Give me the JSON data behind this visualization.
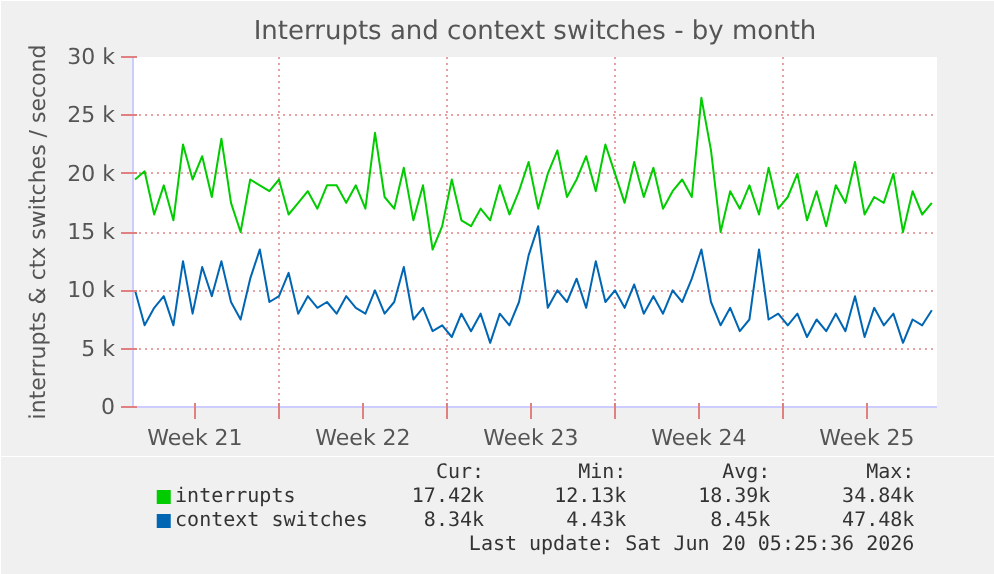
{
  "chart_data": {
    "type": "line",
    "title": "Interrupts and context switches - by month",
    "ylabel": "interrupts & ctx switches / second",
    "x": [
      "2026-05-19T00:00",
      "2026-05-19T09:36",
      "2026-05-19T19:12",
      "2026-05-20T04:48",
      "2026-05-20T14:24",
      "2026-05-21T00:00",
      "2026-05-21T09:36",
      "2026-05-21T19:12",
      "2026-05-22T04:48",
      "2026-05-22T14:24",
      "2026-05-23T00:00",
      "2026-05-23T09:36",
      "2026-05-23T19:12",
      "2026-05-24T04:48",
      "2026-05-24T14:24",
      "2026-05-25T00:00",
      "2026-05-25T09:36",
      "2026-05-25T19:12",
      "2026-05-26T04:48",
      "2026-05-26T14:24",
      "2026-05-27T00:00",
      "2026-05-27T09:36",
      "2026-05-27T19:12",
      "2026-05-28T04:48",
      "2026-05-28T14:24",
      "2026-05-29T00:00",
      "2026-05-29T09:36",
      "2026-05-29T19:12",
      "2026-05-30T04:48",
      "2026-05-30T14:24",
      "2026-05-31T00:00",
      "2026-05-31T09:36",
      "2026-05-31T19:12",
      "2026-06-01T04:48",
      "2026-06-01T14:24",
      "2026-06-02T00:00",
      "2026-06-02T09:36",
      "2026-06-02T19:12",
      "2026-06-03T04:48",
      "2026-06-03T14:24",
      "2026-06-04T00:00",
      "2026-06-04T09:36",
      "2026-06-04T19:12",
      "2026-06-05T04:48",
      "2026-06-05T14:24",
      "2026-06-06T00:00",
      "2026-06-06T09:36",
      "2026-06-06T19:12",
      "2026-06-07T04:48",
      "2026-06-07T14:24",
      "2026-06-08T00:00",
      "2026-06-08T09:36",
      "2026-06-08T19:12",
      "2026-06-09T04:48",
      "2026-06-09T14:24",
      "2026-06-10T00:00",
      "2026-06-10T09:36",
      "2026-06-10T19:12",
      "2026-06-11T04:48",
      "2026-06-11T14:24",
      "2026-06-12T00:00",
      "2026-06-12T09:36",
      "2026-06-12T19:12",
      "2026-06-13T04:48",
      "2026-06-13T14:24",
      "2026-06-14T00:00",
      "2026-06-14T09:36",
      "2026-06-14T19:12",
      "2026-06-15T04:48",
      "2026-06-15T14:24",
      "2026-06-16T00:00",
      "2026-06-16T09:36",
      "2026-06-16T19:12",
      "2026-06-17T04:48",
      "2026-06-17T14:24",
      "2026-06-18T00:00",
      "2026-06-18T09:36",
      "2026-06-18T19:12",
      "2026-06-19T04:48",
      "2026-06-19T14:24",
      "2026-06-20T00:00",
      "2026-06-20T09:36",
      "2026-06-20T19:12",
      "2026-06-21T04:48"
    ],
    "series": [
      {
        "name": "interrupts",
        "color": "#00cc00",
        "values": [
          19500,
          20200,
          16500,
          19000,
          16000,
          22500,
          19500,
          21500,
          18000,
          23000,
          17500,
          15000,
          19500,
          19000,
          18500,
          19500,
          16500,
          17500,
          18500,
          17000,
          19000,
          19000,
          17500,
          19000,
          17000,
          23500,
          18000,
          17000,
          20500,
          16000,
          19000,
          13500,
          15500,
          19500,
          16000,
          15500,
          17000,
          16000,
          19000,
          16500,
          18500,
          21000,
          17000,
          20000,
          22000,
          18000,
          19500,
          21500,
          18500,
          22500,
          20000,
          17500,
          21000,
          18000,
          20500,
          17000,
          18500,
          19500,
          18000,
          26500,
          22000,
          15000,
          18500,
          17000,
          19000,
          16500,
          20500,
          17000,
          18000,
          20000,
          16000,
          18500,
          15500,
          19000,
          17500,
          21000,
          16500,
          18000,
          17500,
          20000,
          15000,
          18500,
          16500,
          17500
        ]
      },
      {
        "name": "context switches",
        "color": "#0066b3",
        "values": [
          10000,
          7000,
          8500,
          9500,
          7000,
          12500,
          8000,
          12000,
          9500,
          12500,
          9000,
          7500,
          11000,
          13500,
          9000,
          9500,
          11500,
          8000,
          9500,
          8500,
          9000,
          8000,
          9500,
          8500,
          8000,
          10000,
          8000,
          9000,
          12000,
          7500,
          8500,
          6500,
          7000,
          6000,
          8000,
          6500,
          8000,
          5500,
          8000,
          7000,
          9000,
          13000,
          15500,
          8500,
          10000,
          9000,
          11000,
          8500,
          12500,
          9000,
          10000,
          8500,
          10500,
          8000,
          9500,
          8000,
          10000,
          9000,
          11000,
          13500,
          9000,
          7000,
          8500,
          6500,
          7500,
          13500,
          7500,
          8000,
          7000,
          8000,
          6000,
          7500,
          6500,
          8000,
          6500,
          9500,
          6000,
          8500,
          7000,
          8000,
          5500,
          7500,
          7000,
          8300
        ]
      }
    ],
    "xlim": [
      "2026-05-18T22:00",
      "2026-06-21T10:00"
    ],
    "xticks": [
      {
        "value": "2026-05-21T12:00",
        "label": "Week 21"
      },
      {
        "value": "2026-05-25",
        "label": null
      },
      {
        "value": "2026-05-28T12:00",
        "label": "Week 22"
      },
      {
        "value": "2026-06-01",
        "label": null
      },
      {
        "value": "2026-06-04T12:00",
        "label": "Week 23"
      },
      {
        "value": "2026-06-08",
        "label": null
      },
      {
        "value": "2026-06-11T12:00",
        "label": "Week 24"
      },
      {
        "value": "2026-06-15",
        "label": null
      },
      {
        "value": "2026-06-18T12:00",
        "label": "Week 25"
      }
    ],
    "ylim": [
      0,
      30000
    ],
    "yticks": [
      0,
      {
        "value": 5000,
        "label": "5 k"
      },
      {
        "value": 10000,
        "label": "10 k"
      },
      {
        "value": 15000,
        "label": "15 k"
      },
      {
        "value": 20000,
        "label": "20 k"
      },
      {
        "value": 25000,
        "label": "25 k"
      },
      {
        "value": 30000,
        "label": "30 k"
      }
    ],
    "grid": true,
    "legend": "bottom",
    "annotations": [
      "Cur:",
      "Min:",
      "Avg:",
      "Max:",
      "17.42k",
      "12.13k",
      "18.39k",
      "34.84k",
      "8.34k",
      "4.43k",
      "8.45k",
      "47.48k",
      "Last update: Sat Jun 20 05:25:36 2026"
    ]
  }
}
